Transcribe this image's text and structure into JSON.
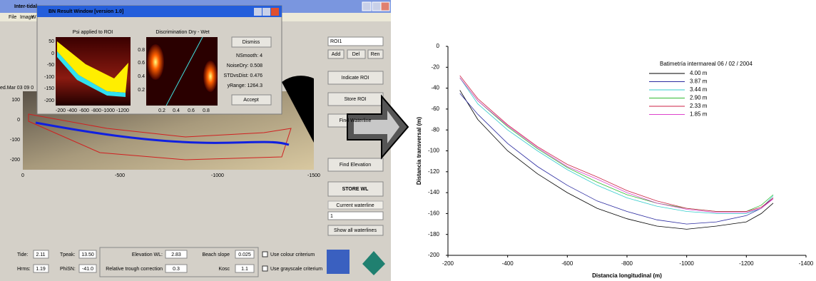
{
  "gui": {
    "window_title": "Inter-tidal",
    "menu": [
      "File",
      "Image",
      "W"
    ],
    "date_label": "ed.Mar 03 09 0",
    "main_plot": {
      "yticks": [
        "100",
        "0",
        "-100",
        "-200"
      ],
      "xticks": [
        "0",
        "-500",
        "-1000",
        "-1500"
      ]
    },
    "result_window": {
      "title": "BN Result Window [version 1.0]",
      "psi_title": "Psi applied to ROI",
      "psi_yticks": [
        "50",
        "0",
        "-50",
        "-100",
        "-150",
        "-200"
      ],
      "psi_xticks": [
        "-200",
        "-400",
        "-600",
        "-800",
        "-1000",
        "-1200"
      ],
      "disc_title": "Discrimination Dry - Wet",
      "disc_yticks": [
        "0.8",
        "0.6",
        "0.4",
        "0.2"
      ],
      "disc_xticks": [
        "0.2",
        "0.4",
        "0.6",
        "0.8"
      ],
      "dismiss": "Dismiss",
      "stats": [
        "NSmooth: 4",
        "NoiseDry: 0.508",
        "STDvsDist: 0.476",
        "yRange: 1264.3"
      ],
      "accept": "Accept"
    },
    "roi_panel": {
      "roi": "ROI1",
      "add": "Add",
      "del": "Del",
      "ren": "Ren",
      "buttons": [
        "Indicate ROI",
        "Store ROI",
        "Find Waterline",
        "Find Elevation"
      ],
      "store_wl": "STORE WL",
      "current_waterline": "Current waterline",
      "waterline_select": "1",
      "show_all": "Show all waterlines"
    },
    "params": {
      "tide_label": "Tide:",
      "tide": "2.11",
      "tpeak_label": "Tpeak:",
      "tpeak": "13.50",
      "hrms_label": "Hrms:",
      "hrms": "1.19",
      "phisn_label": "PhiSN:",
      "phisn": "-41.0",
      "elevation_label": "Elevation WL:",
      "elevation": "2.83",
      "slope_label": "Beach slope",
      "slope": "0.025",
      "trough_label": "Relative trough correction",
      "trough": "0.3",
      "kosc_label": "Kosc",
      "kosc": "1.1",
      "colour_criterium": "Use colour criterium",
      "grayscale_criterium": "Use grayscale criterium"
    }
  },
  "chart_data": {
    "type": "line",
    "title": "Batimetría intermareal 06 / 02 / 2004",
    "x_label": "Distancia longitudinal (m)",
    "y_label": "Distancia transversal (m)",
    "x": [
      -240,
      -300,
      -400,
      -500,
      -600,
      -700,
      -800,
      -900,
      -1000,
      -1100,
      -1200,
      -1250,
      -1290
    ],
    "series": [
      {
        "name": "4.00 m",
        "color": "#000000",
        "values": [
          -42,
          -70,
          -100,
          -122,
          -140,
          -155,
          -165,
          -172,
          -175,
          -172,
          -168,
          -160,
          -150
        ]
      },
      {
        "name": "3.87 m",
        "color": "#2a2aa0",
        "values": [
          -45,
          -65,
          -93,
          -115,
          -133,
          -148,
          -158,
          -166,
          -170,
          -168,
          -162,
          -155,
          -145
        ]
      },
      {
        "name": "3.44 m",
        "color": "#33cccc",
        "values": [
          -30,
          -55,
          -80,
          -100,
          -118,
          -133,
          -145,
          -153,
          -158,
          -160,
          -160,
          -155,
          -143
        ]
      },
      {
        "name": "2.90 m",
        "color": "#33bb33",
        "values": [
          -30,
          -52,
          -77,
          -98,
          -116,
          -130,
          -142,
          -150,
          -155,
          -158,
          -158,
          -152,
          -142
        ]
      },
      {
        "name": "2.33 m",
        "color": "#cc2244",
        "values": [
          -28,
          -50,
          -75,
          -96,
          -113,
          -125,
          -138,
          -148,
          -155,
          -158,
          -158,
          -154,
          -145
        ]
      },
      {
        "name": "1.85 m",
        "color": "#dd44cc",
        "values": [
          -30,
          -52,
          -76,
          -97,
          -115,
          -127,
          -140,
          -150,
          -156,
          -159,
          -159,
          -155,
          -146
        ]
      }
    ],
    "xlim": [
      -200,
      -1400
    ],
    "xticks": [
      -200,
      -400,
      -600,
      -800,
      -1000,
      -1200,
      -1400
    ],
    "ylim": [
      -200,
      0
    ],
    "yticks": [
      -200,
      -180,
      -160,
      -140,
      -120,
      -100,
      -80,
      -60,
      -40,
      -20,
      0
    ],
    "legend": "upper right",
    "grid": false
  }
}
